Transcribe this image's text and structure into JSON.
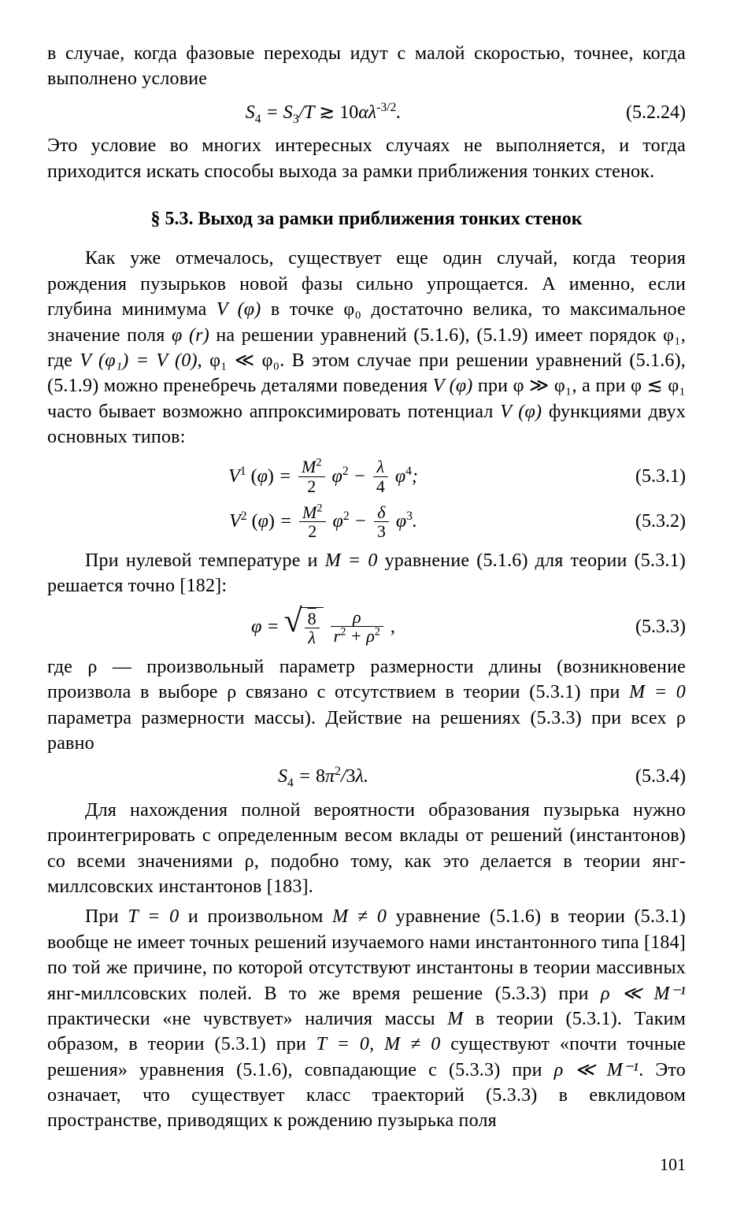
{
  "p1": "в случае, когда фазовые переходы идут с малой скоростью, точнее, когда выполнено условие",
  "eq_5_2_24": {
    "label": "(5.2.24)"
  },
  "p2": "Это условие во многих интересных случаях не выполняется, и тогда приходится искать способы выхода за рамки приближения тонких стенок.",
  "heading": "§ 5.3. Выход за рамки приближения тонких стенок",
  "p3_a": "Как уже отмечалось, существует еще один случай, когда теория рождения пузырьков новой фазы сильно упрощается. А именно, если глубина минимума ",
  "p3_b": " в точке φ₀ достаточно велика, то максимальное значение поля ",
  "p3_c": " на решении уравнений (5.1.6), (5.1.9) имеет порядок φ₁, где ",
  "p3_d": ", φ₁ ≪ φ₀. В этом случае при решении уравнений (5.1.6), (5.1.9) можно пренебречь деталями поведения ",
  "p3_e": " при φ ≫ φ₁, а при φ ≲ φ₁ часто бывает возможно аппроксимировать потенциал ",
  "p3_f": " функциями двух основных типов:",
  "eq_5_3_1": {
    "label": "(5.3.1)"
  },
  "eq_5_3_2": {
    "label": "(5.3.2)"
  },
  "p4_a": "При нулевой температуре и ",
  "p4_b": " уравнение (5.1.6) для теории (5.3.1) решается точно [182]:",
  "eq_5_3_3": {
    "label": "(5.3.3)"
  },
  "p5_a": "где ρ — произвольный параметр размерности длины (возникновение произвола в выборе ρ связано с отсутствием в теории (5.3.1) при ",
  "p5_b": " параметра размерности массы). Действие на решениях (5.3.3) при всех ρ равно",
  "eq_5_3_4": {
    "label": "(5.3.4)"
  },
  "p6": "Для нахождения полной вероятности образования пузырька нужно проинтегрировать с определенным весом вклады от решений (инстантонов) со всеми значениями ρ, подобно тому, как это делается в теории янг-миллсовских инстантонов [183].",
  "p7_a": "При ",
  "p7_b": " и произвольном ",
  "p7_c": " уравнение (5.1.6) в теории (5.3.1) вообще не имеет точных решений изучаемого нами инстантонного типа [184] по той же причине, по которой отсутствуют инстантоны в теории массивных янг-миллсовских полей. В то же время решение (5.3.3) при ",
  "p7_d": " практически «не чувствует» наличия массы ",
  "p7_e": " в теории (5.3.1). Таким образом, в теории (5.3.1) при ",
  "p7_f": " существуют «почти точные решения» уравнения (5.1.6), совпадающие с (5.3.3) при ",
  "p7_g": ". Это означает, что существует класс траекторий (5.3.3) в евклидовом пространстве, приводящих к рождению пузырька поля",
  "math": {
    "V_phi": "V (φ)",
    "phi_r": "φ (r)",
    "V_phi1_eq_V0": "V (φ₁) = V (0)",
    "M_eq_0": "M = 0",
    "T_eq_0": "T = 0",
    "M_neq_0": "M ≠ 0",
    "rho_ll_Minv": "ρ ≪ M⁻¹",
    "M": "M",
    "T0_Mneq0": "T = 0, M ≠ 0"
  },
  "pagenum": "101"
}
